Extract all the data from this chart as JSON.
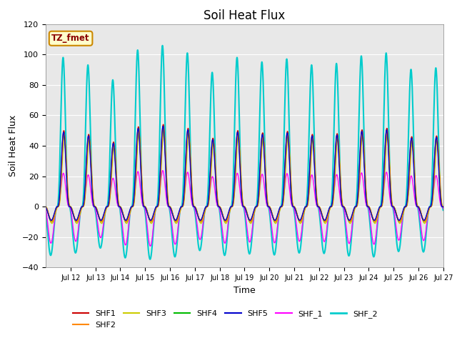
{
  "title": "Soil Heat Flux",
  "xlabel": "Time",
  "ylabel": "Soil Heat Flux",
  "xlim_days": [
    11,
    27
  ],
  "ylim": [
    -40,
    120
  ],
  "yticks": [
    -40,
    -20,
    0,
    20,
    40,
    60,
    80,
    100,
    120
  ],
  "xtick_labels": [
    "Jul 12",
    "Jul 13",
    "Jul 14",
    "Jul 15",
    "Jul 16",
    "Jul 17",
    "Jul 18",
    "Jul 19",
    "Jul 20",
    "Jul 21",
    "Jul 22",
    "Jul 23",
    "Jul 24",
    "Jul 25",
    "Jul 26",
    "Jul 27"
  ],
  "series_order": [
    "SHF1",
    "SHF2",
    "SHF3",
    "SHF4",
    "SHF5",
    "SHF_1",
    "SHF_2"
  ],
  "series": {
    "SHF1": {
      "color": "#cc0000",
      "lw": 1.0
    },
    "SHF2": {
      "color": "#ff8800",
      "lw": 1.0
    },
    "SHF3": {
      "color": "#cccc00",
      "lw": 1.0
    },
    "SHF4": {
      "color": "#00bb00",
      "lw": 1.0
    },
    "SHF5": {
      "color": "#0000cc",
      "lw": 1.0
    },
    "SHF_1": {
      "color": "#ff00ff",
      "lw": 1.0
    },
    "SHF_2": {
      "color": "#00cccc",
      "lw": 1.5
    }
  },
  "annotation_text": "TZ_fmet",
  "annotation_color": "#8b0000",
  "annotation_bg": "#ffffcc",
  "annotation_border": "#cc8800",
  "bg_color": "#e8e8e8",
  "title_fontsize": 12,
  "axis_fontsize": 9,
  "tick_fontsize": 8,
  "legend_fontsize": 8
}
